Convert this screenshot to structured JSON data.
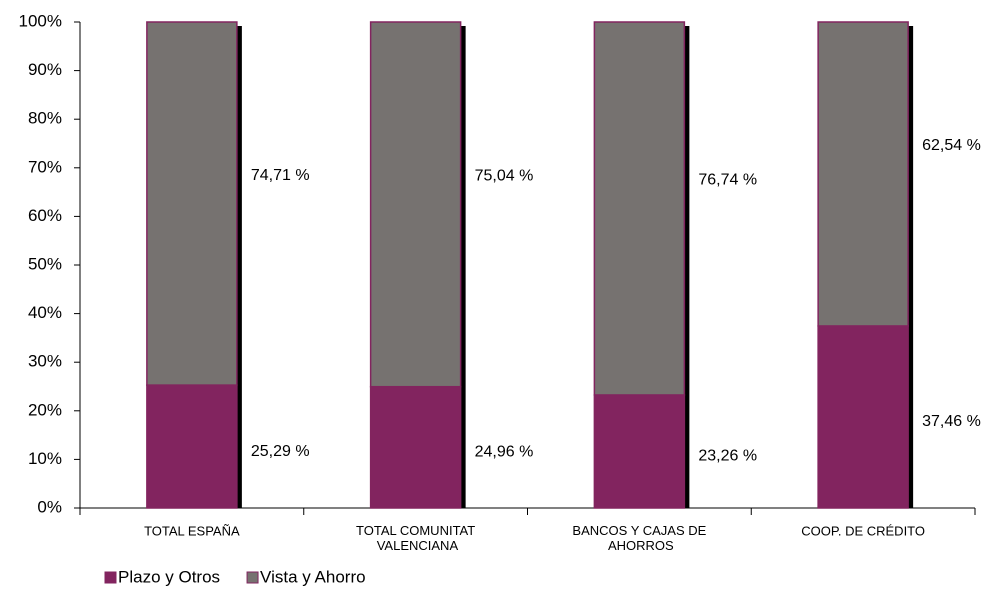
{
  "chart_data": {
    "type": "stacked_bar",
    "categories": [
      "TOTAL ESPAÑA",
      "TOTAL COMUNITAT VALENCIANA",
      "BANCOS Y CAJAS DE AHORROS",
      "COOP. DE CRÉDITO"
    ],
    "series": [
      {
        "name": "Plazo y Otros",
        "color": "#82245f",
        "values": [
          25.29,
          24.96,
          23.26,
          37.46
        ],
        "value_labels": [
          "25,29 %",
          "24,96 %",
          "23,26 %",
          "37,46 %"
        ]
      },
      {
        "name": "Vista y Ahorro",
        "color": "#767270",
        "values": [
          74.71,
          75.04,
          76.74,
          62.54
        ],
        "value_labels": [
          "74,71 %",
          "75,04 %",
          "76,74 %",
          "62,54 %"
        ]
      }
    ],
    "ylim": [
      0,
      100
    ],
    "yticks": [
      {
        "value": 0,
        "label": "0%"
      },
      {
        "value": 10,
        "label": "10%"
      },
      {
        "value": 20,
        "label": "20%"
      },
      {
        "value": 30,
        "label": "30%"
      },
      {
        "value": 40,
        "label": "40%"
      },
      {
        "value": 50,
        "label": "50%"
      },
      {
        "value": 60,
        "label": "60%"
      },
      {
        "value": 70,
        "label": "70%"
      },
      {
        "value": 80,
        "label": "80%"
      },
      {
        "value": 90,
        "label": "90%"
      },
      {
        "value": 100,
        "label": "100%"
      }
    ],
    "legend": "bottom-left"
  }
}
